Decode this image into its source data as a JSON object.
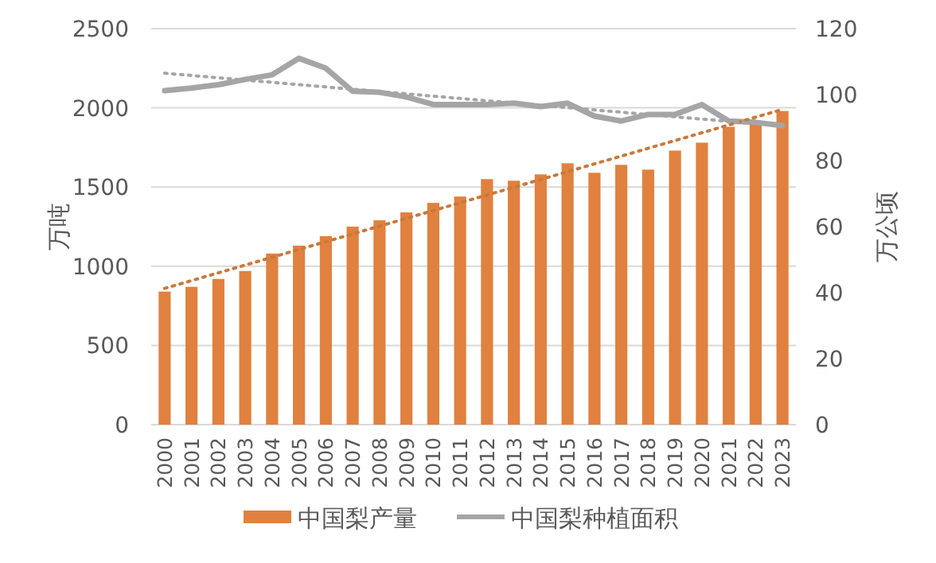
{
  "chart_data": {
    "type": "bar",
    "ylabel": "万吨",
    "y2label": "万公顷",
    "categories": [
      "2000",
      "2001",
      "2002",
      "2003",
      "2004",
      "2005",
      "2006",
      "2007",
      "2008",
      "2009",
      "2010",
      "2011",
      "2012",
      "2013",
      "2014",
      "2015",
      "2016",
      "2017",
      "2018",
      "2019",
      "2020",
      "2021",
      "2022",
      "2023"
    ],
    "series": [
      {
        "name": "中国梨产量",
        "color": "#e0813f",
        "values": [
          840,
          870,
          920,
          970,
          1080,
          1130,
          1190,
          1250,
          1290,
          1340,
          1400,
          1440,
          1550,
          1540,
          1580,
          1650,
          1590,
          1640,
          1610,
          1730,
          1780,
          1880,
          1910,
          1980
        ]
      },
      {
        "name": "中国梨种植面积",
        "type": "line",
        "axis": "y2",
        "color": "#a5a5a5",
        "values": [
          101.2,
          102,
          103,
          104.6,
          106,
          111,
          108,
          101,
          100.7,
          99.3,
          97,
          97,
          97,
          97.4,
          96.4,
          97.4,
          93.5,
          92,
          94,
          94,
          97,
          92,
          91.6,
          90.6
        ]
      },
      {
        "type": "line",
        "color": "#c9783a",
        "line_style": "dotted",
        "values": [
          860,
          null,
          null,
          null,
          null,
          null,
          null,
          null,
          null,
          null,
          null,
          null,
          null,
          null,
          null,
          null,
          null,
          null,
          null,
          null,
          null,
          null,
          null,
          1990
        ]
      },
      {
        "type": "line",
        "axis": "y2",
        "color": "#a5a5a5",
        "line_style": "dotted",
        "values": [
          106.5,
          null,
          null,
          null,
          null,
          null,
          null,
          null,
          null,
          null,
          null,
          null,
          null,
          null,
          null,
          null,
          null,
          null,
          null,
          null,
          null,
          null,
          null,
          90.5
        ]
      }
    ],
    "ylim": [
      0,
      2500
    ],
    "yticks": [
      0,
      500,
      1000,
      1500,
      2000,
      2500
    ],
    "y2lim": [
      0,
      120
    ],
    "y2ticks": [
      0,
      20,
      40,
      60,
      80,
      100,
      120
    ],
    "grid": "y",
    "legend": "bottom"
  }
}
